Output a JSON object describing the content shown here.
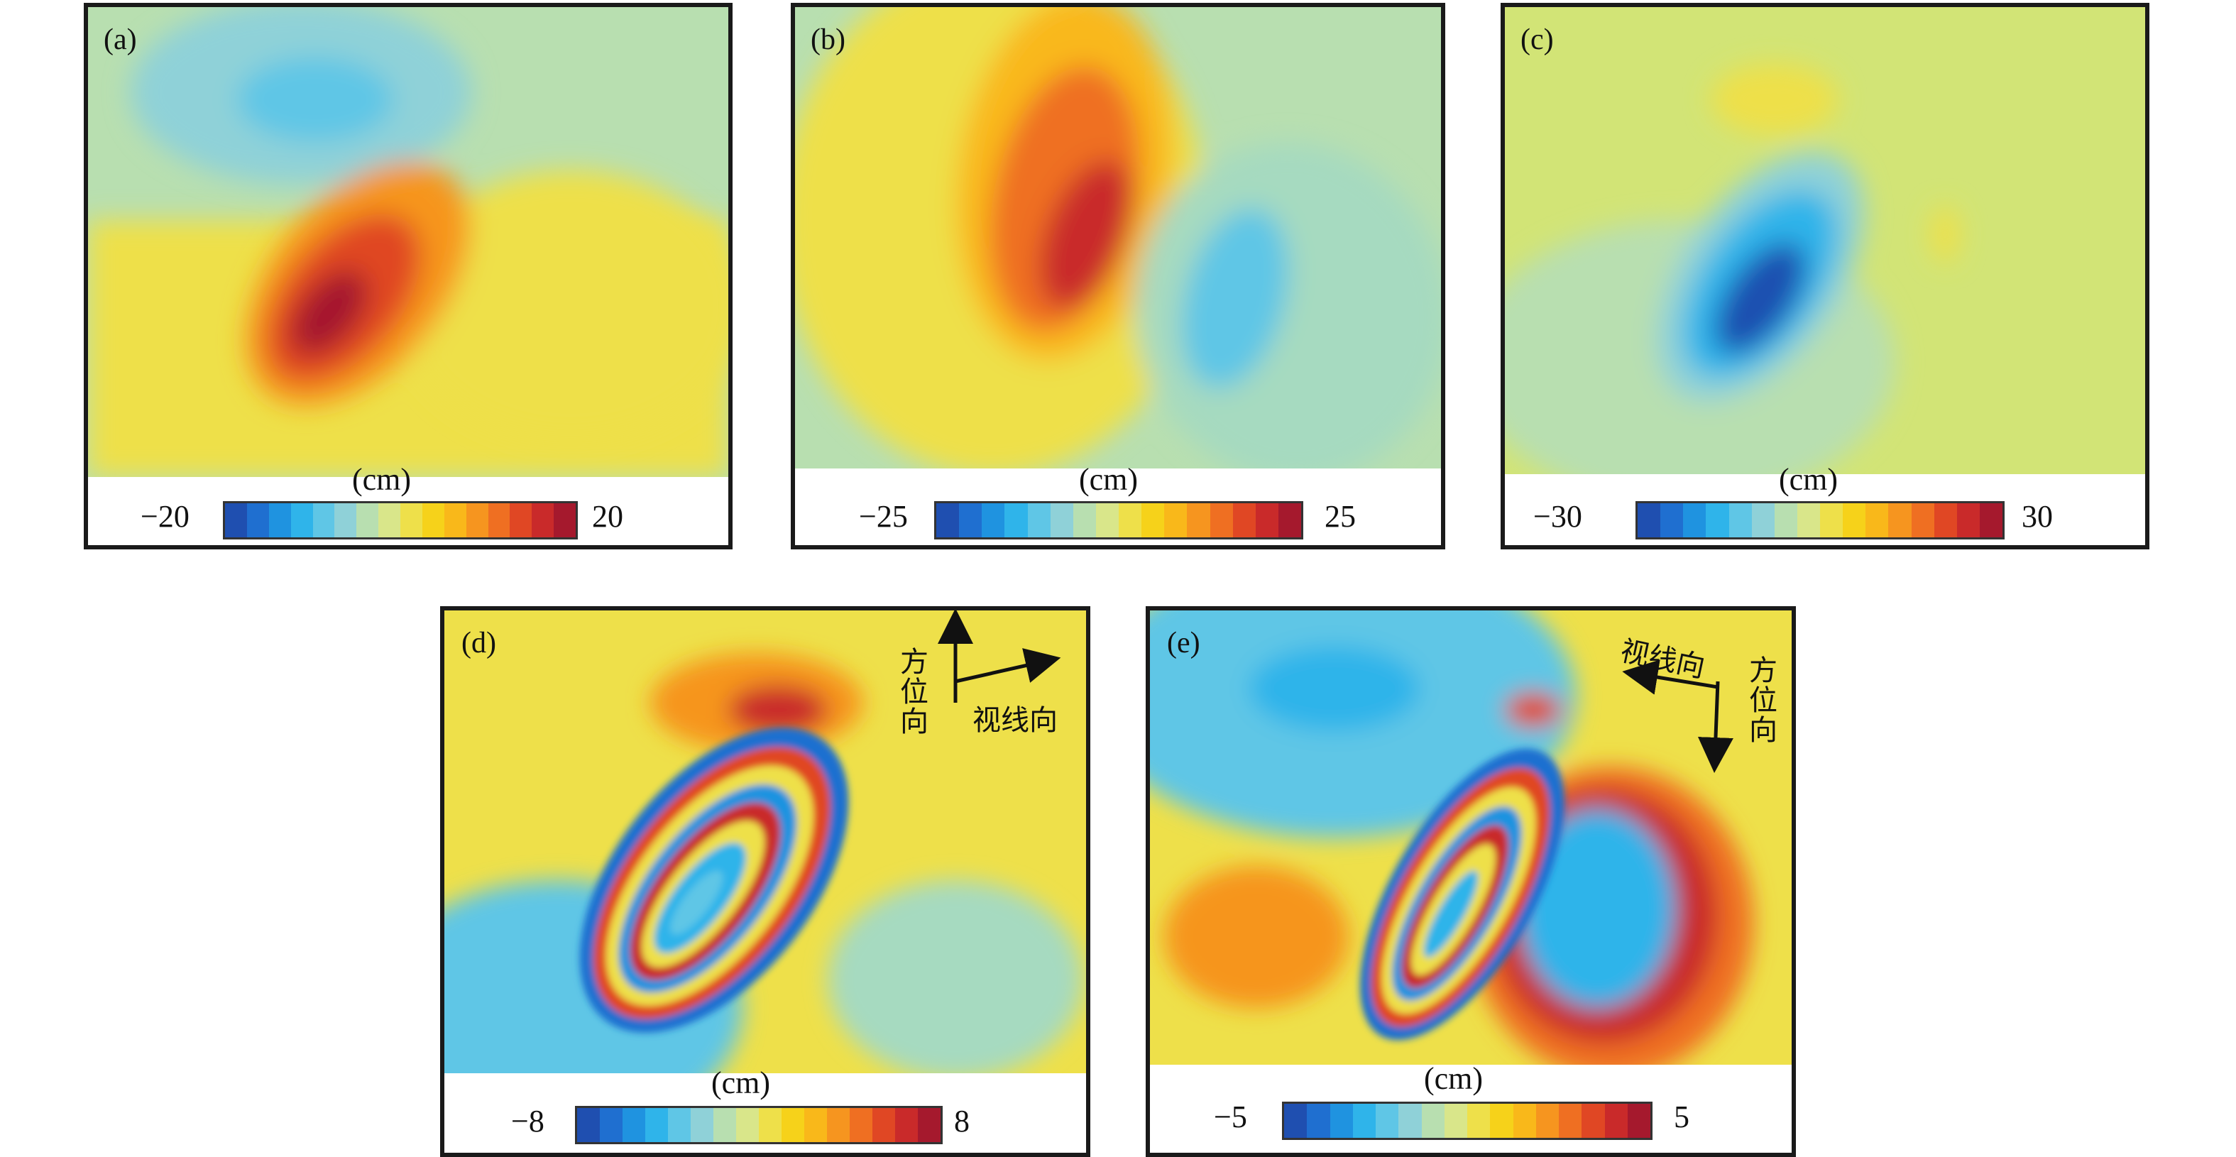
{
  "chart_data": [
    {
      "type": "heatmap",
      "panel_label": "(a)",
      "unit": "(cm)",
      "colorbar": {
        "min": -20,
        "max": 20,
        "min_label": "−20",
        "max_label": "20"
      }
    },
    {
      "type": "heatmap",
      "panel_label": "(b)",
      "unit": "(cm)",
      "colorbar": {
        "min": -25,
        "max": 25,
        "min_label": "−25",
        "max_label": "25"
      }
    },
    {
      "type": "heatmap",
      "panel_label": "(c)",
      "unit": "(cm)",
      "colorbar": {
        "min": -30,
        "max": 30,
        "min_label": "−30",
        "max_label": "30"
      }
    },
    {
      "type": "heatmap",
      "panel_label": "(d)",
      "unit": "(cm)",
      "colorbar": {
        "min": -8,
        "max": 8,
        "min_label": "−8",
        "max_label": "8"
      },
      "arrows": {
        "azimuth": "方位向",
        "los": "视线向"
      }
    },
    {
      "type": "heatmap",
      "panel_label": "(e)",
      "unit": "(cm)",
      "colorbar": {
        "min": -5,
        "max": 5,
        "min_label": "−5",
        "max_label": "5"
      },
      "arrows": {
        "azimuth": "方位向",
        "los": "视线向"
      }
    }
  ],
  "colormap": [
    "#1f4fb0",
    "#1f6fd0",
    "#1f93e0",
    "#2fb4ea",
    "#5fc6e6",
    "#8fd1d8",
    "#b8dfb0",
    "#d9e68a",
    "#eee04a",
    "#f6d21a",
    "#f9b81a",
    "#f6951f",
    "#ef6f22",
    "#e04724",
    "#c92a2a",
    "#a5192d"
  ]
}
